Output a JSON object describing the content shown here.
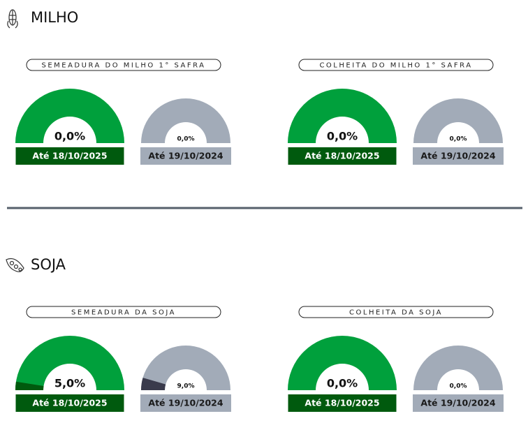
{
  "sections": [
    {
      "title": "MILHO",
      "panels": [
        {
          "title": "SEMEADURA DO MILHO 1° SAFRA",
          "gauges": [
            {
              "value": 0,
              "label": "0,0%",
              "date": "Até 18/10/2025",
              "color": "#00a03c",
              "fill_color": "#005a0e",
              "box_color": "#005a0e",
              "text_color": "#ffffff"
            },
            {
              "value": 0,
              "label": "0,0%",
              "date": "Até 19/10/2024",
              "color": "#a2abb8",
              "fill_color": "#3a3b4c",
              "box_color": "#a2abb8",
              "text_color": "#1a1a1a"
            }
          ]
        },
        {
          "title": "COLHEITA DO MILHO 1° SAFRA",
          "gauges": [
            {
              "value": 0,
              "label": "0,0%",
              "date": "Até 18/10/2025",
              "color": "#00a03c",
              "fill_color": "#005a0e",
              "box_color": "#005a0e",
              "text_color": "#ffffff"
            },
            {
              "value": 0,
              "label": "0,0%",
              "date": "Até 19/10/2024",
              "color": "#a2abb8",
              "fill_color": "#3a3b4c",
              "box_color": "#a2abb8",
              "text_color": "#1a1a1a"
            }
          ]
        }
      ]
    },
    {
      "title": "SOJA",
      "panels": [
        {
          "title": "SEMEADURA DA SOJA",
          "gauges": [
            {
              "value": 5.0,
              "label": "5,0%",
              "date": "Até 18/10/2025",
              "color": "#00a03c",
              "fill_color": "#005a0e",
              "box_color": "#005a0e",
              "text_color": "#ffffff"
            },
            {
              "value": 9.0,
              "label": "9,0%",
              "date": "Até 19/10/2024",
              "color": "#a2abb8",
              "fill_color": "#3a3b4c",
              "box_color": "#a2abb8",
              "text_color": "#1a1a1a"
            }
          ]
        },
        {
          "title": "COLHEITA DA SOJA",
          "gauges": [
            {
              "value": 0,
              "label": "0,0%",
              "date": "Até 18/10/2025",
              "color": "#00a03c",
              "fill_color": "#005a0e",
              "box_color": "#005a0e",
              "text_color": "#ffffff"
            },
            {
              "value": 0,
              "label": "0,0%",
              "date": "Até 19/10/2024",
              "color": "#a2abb8",
              "fill_color": "#3a3b4c",
              "box_color": "#a2abb8",
              "text_color": "#1a1a1a"
            }
          ]
        }
      ]
    }
  ]
}
